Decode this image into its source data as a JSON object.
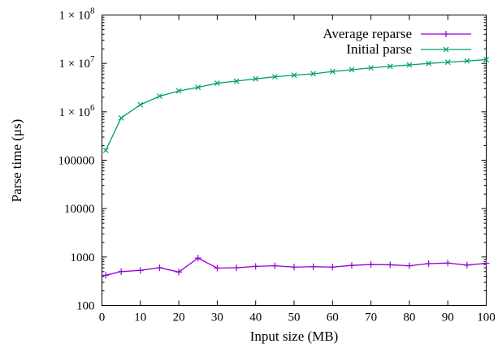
{
  "chart_data": {
    "type": "line",
    "xlabel": "Input size (MB)",
    "ylabel": "Parse time (μs)",
    "xlim": [
      0,
      100
    ],
    "ylim": [
      100,
      100000000
    ],
    "yscale": "log",
    "grid": false,
    "legend_position": "top-right",
    "xticks": [
      0,
      10,
      20,
      30,
      40,
      50,
      60,
      70,
      80,
      90,
      100
    ],
    "yticks": [
      {
        "value": 100,
        "label": "100"
      },
      {
        "value": 1000,
        "label": "1000"
      },
      {
        "value": 10000,
        "label": "10000"
      },
      {
        "value": 100000,
        "label": "100000"
      },
      {
        "value": 1000000,
        "label": "1 × 10^6",
        "base": "1 × 10",
        "exp": "6"
      },
      {
        "value": 10000000,
        "label": "1 × 10^7",
        "base": "1 × 10",
        "exp": "7"
      },
      {
        "value": 100000000,
        "label": "1 × 10^8",
        "base": "1 × 10",
        "exp": "8"
      }
    ],
    "series": [
      {
        "name": "Average reparse",
        "color": "#9400d3",
        "marker": "plus",
        "x": [
          1,
          5,
          10,
          15,
          20,
          25,
          30,
          35,
          40,
          45,
          50,
          55,
          60,
          65,
          70,
          75,
          80,
          85,
          90,
          95,
          100
        ],
        "y": [
          420,
          500,
          530,
          600,
          490,
          950,
          590,
          600,
          640,
          660,
          620,
          630,
          620,
          670,
          700,
          690,
          660,
          730,
          750,
          680,
          740
        ]
      },
      {
        "name": "Initial parse",
        "color": "#009e73",
        "marker": "x",
        "x": [
          1,
          5,
          10,
          15,
          20,
          25,
          30,
          35,
          40,
          45,
          50,
          55,
          60,
          65,
          70,
          75,
          80,
          85,
          90,
          95,
          100
        ],
        "y": [
          160000,
          750000,
          1400000,
          2100000,
          2700000,
          3200000,
          3900000,
          4300000,
          4800000,
          5300000,
          5700000,
          6100000,
          6800000,
          7400000,
          8100000,
          8700000,
          9300000,
          10000000,
          10600000,
          11200000,
          12000000
        ]
      }
    ]
  }
}
